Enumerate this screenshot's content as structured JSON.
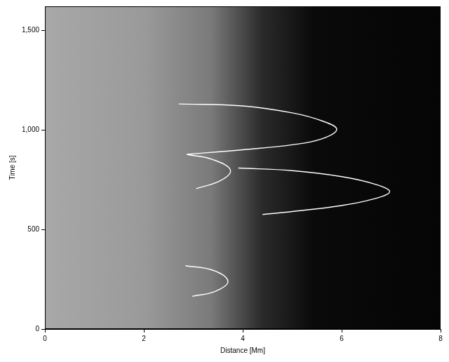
{
  "chart_data": {
    "type": "line",
    "x_label": "Distance [Mm]",
    "y_label": "Time [s]",
    "xlim": [
      0,
      8
    ],
    "xticks": [
      0,
      2,
      4,
      6,
      8
    ],
    "ylim": [
      0,
      1620
    ],
    "yticks": [
      0,
      500,
      1000,
      1500
    ],
    "grid": false,
    "series": [
      {
        "color": "#ffffff",
        "marker": "none",
        "line_style": "solid",
        "x": [
          2.71,
          4.0,
          5.0,
          5.6,
          5.9,
          5.6,
          5.0,
          4.0,
          2.87
        ],
        "values": [
          1130,
          1120,
          1085,
          1045,
          1003,
          955,
          925,
          900,
          877
        ]
      },
      {
        "color": "#ffffff",
        "marker": "none",
        "line_style": "solid",
        "x": [
          2.87,
          3.4,
          3.75,
          3.55,
          3.06
        ],
        "values": [
          877,
          850,
          798,
          745,
          705
        ]
      },
      {
        "color": "#ffffff",
        "marker": "none",
        "line_style": "solid",
        "x": [
          3.91,
          5.0,
          6.0,
          6.7,
          6.97,
          6.6,
          6.0,
          5.0,
          4.4
        ],
        "values": [
          808,
          795,
          765,
          725,
          688,
          650,
          620,
          590,
          575
        ]
      },
      {
        "color": "#ffffff",
        "marker": "none",
        "line_style": "solid",
        "x": [
          2.84,
          3.4,
          3.7,
          3.45,
          2.98
        ],
        "values": [
          318,
          295,
          240,
          190,
          164
        ]
      }
    ]
  }
}
